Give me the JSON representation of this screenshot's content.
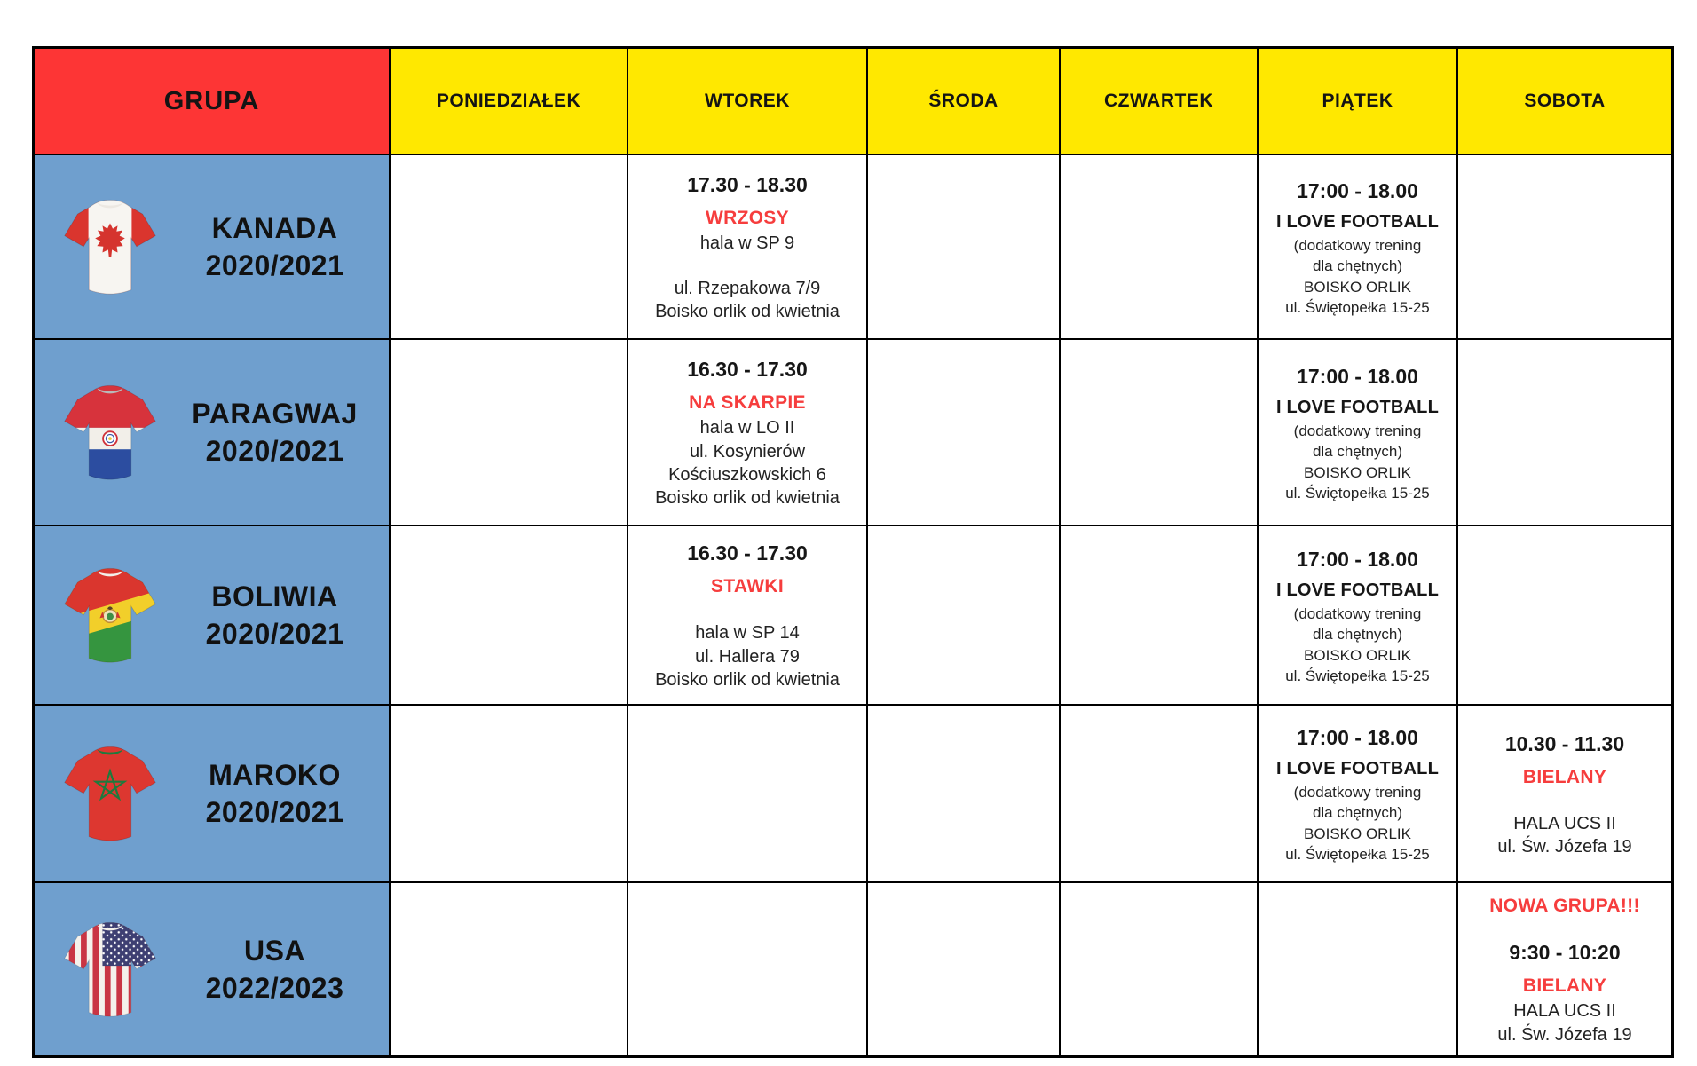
{
  "colors": {
    "header_red": "#fd3535",
    "header_yellow": "#ffe800",
    "group_blue": "#6f9fce",
    "accent_red": "#f63d3d",
    "text": "#1d1d1d"
  },
  "header": {
    "group_label": "GRUPA",
    "days": [
      {
        "key": "poniedzialek",
        "label": "PONIEDZIAŁEK"
      },
      {
        "key": "wtorek",
        "label": "WTOREK"
      },
      {
        "key": "sroda",
        "label": "ŚRODA"
      },
      {
        "key": "czwartek",
        "label": "CZWARTEK"
      },
      {
        "key": "piatek",
        "label": "PIĄTEK"
      },
      {
        "key": "sobota",
        "label": "SOBOTA"
      }
    ]
  },
  "rows": [
    {
      "key": "kanada",
      "name": "KANADA",
      "season": "2020/2021",
      "jersey": "canada",
      "jersey_icon": "canada-flag-jersey-icon",
      "cells": {
        "wtorek": [
          {
            "text": "17.30 - 18.30",
            "style": "time"
          },
          {
            "text": "WRZOSY",
            "style": "venue"
          },
          {
            "text": "hala w SP 9",
            "style": "normal"
          },
          {
            "text": "",
            "style": "gap"
          },
          {
            "text": "ul. Rzepakowa 7/9",
            "style": "normal"
          },
          {
            "text": "Boisko orlik od kwietnia",
            "style": "normal"
          }
        ],
        "piatek": [
          {
            "text": "17:00 - 18.00",
            "style": "time"
          },
          {
            "text": "I LOVE FOOTBALL",
            "style": "bold"
          },
          {
            "text": "(dodatkowy trening",
            "style": "small"
          },
          {
            "text": "dla chętnych)",
            "style": "small"
          },
          {
            "text": "BOISKO ORLIK",
            "style": "small"
          },
          {
            "text": "ul. Świętopełka 15-25",
            "style": "small"
          }
        ]
      }
    },
    {
      "key": "paragwaj",
      "name": "PARAGWAJ",
      "season": "2020/2021",
      "jersey": "paraguay",
      "jersey_icon": "paraguay-flag-jersey-icon",
      "cells": {
        "wtorek": [
          {
            "text": "16.30 - 17.30",
            "style": "time"
          },
          {
            "text": "NA SKARPIE",
            "style": "venue"
          },
          {
            "text": "hala w LO II",
            "style": "normal"
          },
          {
            "text": "ul. Kosynierów",
            "style": "normal"
          },
          {
            "text": "Kościuszkowskich 6",
            "style": "normal"
          },
          {
            "text": "Boisko orlik od kwietnia",
            "style": "normal"
          }
        ],
        "piatek": [
          {
            "text": "17:00 - 18.00",
            "style": "time"
          },
          {
            "text": "I LOVE FOOTBALL",
            "style": "bold"
          },
          {
            "text": "(dodatkowy trening",
            "style": "small"
          },
          {
            "text": "dla chętnych)",
            "style": "small"
          },
          {
            "text": "BOISKO ORLIK",
            "style": "small"
          },
          {
            "text": "ul. Świętopełka 15-25",
            "style": "small"
          }
        ]
      }
    },
    {
      "key": "boliwia",
      "name": "BOLIWIA",
      "season": "2020/2021",
      "jersey": "bolivia",
      "jersey_icon": "bolivia-flag-jersey-icon",
      "cells": {
        "wtorek": [
          {
            "text": "16.30 - 17.30",
            "style": "time"
          },
          {
            "text": "STAWKI",
            "style": "venue"
          },
          {
            "text": "",
            "style": "gap"
          },
          {
            "text": "hala w SP 14",
            "style": "normal"
          },
          {
            "text": "ul. Hallera 79",
            "style": "normal"
          },
          {
            "text": "Boisko orlik od kwietnia",
            "style": "normal"
          }
        ],
        "piatek": [
          {
            "text": "17:00 - 18.00",
            "style": "time"
          },
          {
            "text": "I LOVE FOOTBALL",
            "style": "bold"
          },
          {
            "text": "(dodatkowy trening",
            "style": "small"
          },
          {
            "text": "dla chętnych)",
            "style": "small"
          },
          {
            "text": "BOISKO ORLIK",
            "style": "small"
          },
          {
            "text": "ul. Świętopełka 15-25",
            "style": "small"
          }
        ]
      }
    },
    {
      "key": "maroko",
      "name": "MAROKO",
      "season": "2020/2021",
      "jersey": "morocco",
      "jersey_icon": "morocco-flag-jersey-icon",
      "cells": {
        "piatek": [
          {
            "text": "17:00 - 18.00",
            "style": "time"
          },
          {
            "text": "I LOVE FOOTBALL",
            "style": "bold"
          },
          {
            "text": "(dodatkowy trening",
            "style": "small"
          },
          {
            "text": "dla chętnych)",
            "style": "small"
          },
          {
            "text": "BOISKO ORLIK",
            "style": "small"
          },
          {
            "text": "ul. Świętopełka 15-25",
            "style": "small"
          }
        ],
        "sobota": [
          {
            "text": "10.30 - 11.30",
            "style": "time"
          },
          {
            "text": "BIELANY",
            "style": "venue"
          },
          {
            "text": "",
            "style": "gap"
          },
          {
            "text": "HALA UCS II",
            "style": "normal"
          },
          {
            "text": "ul. Św. Józefa 19",
            "style": "normal"
          }
        ]
      }
    },
    {
      "key": "usa",
      "name": "USA",
      "season": "2022/2023",
      "jersey": "usa",
      "jersey_icon": "usa-flag-jersey-icon",
      "cells": {
        "sobota": [
          {
            "text": "NOWA GRUPA!!!",
            "style": "venue"
          },
          {
            "text": "",
            "style": "gap"
          },
          {
            "text": "9:30 - 10:20",
            "style": "time"
          },
          {
            "text": "BIELANY",
            "style": "venue"
          },
          {
            "text": "HALA UCS II",
            "style": "normal"
          },
          {
            "text": "ul. Św. Józefa 19",
            "style": "normal"
          }
        ]
      }
    }
  ]
}
